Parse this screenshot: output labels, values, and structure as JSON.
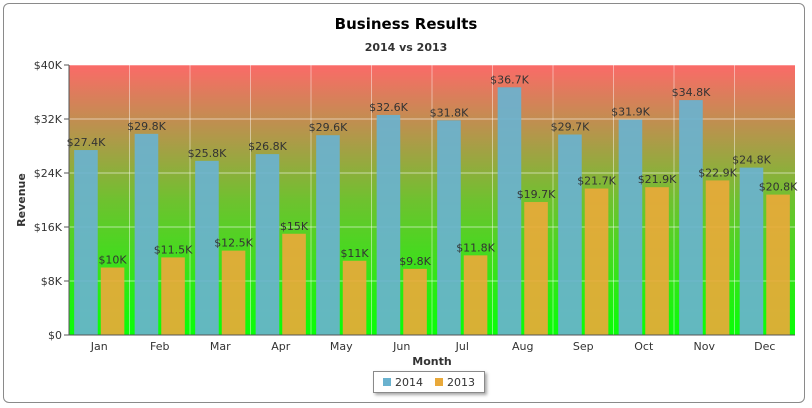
{
  "chart_data": {
    "type": "bar",
    "title": "Business Results",
    "subtitle": "2014 vs 2013",
    "xlabel": "Month",
    "ylabel": "Revenue",
    "ylim": [
      0,
      40000
    ],
    "yticks": [
      0,
      8000,
      16000,
      24000,
      32000,
      40000
    ],
    "ytick_labels": [
      "$0",
      "$8K",
      "$16K",
      "$24K",
      "$32K",
      "$40K"
    ],
    "grid": true,
    "legend_position": "bottom-center",
    "categories": [
      "Jan",
      "Feb",
      "Mar",
      "Apr",
      "May",
      "Jun",
      "Jul",
      "Aug",
      "Sep",
      "Oct",
      "Nov",
      "Dec"
    ],
    "series": [
      {
        "name": "2014",
        "color": "#6ab2cf",
        "values": [
          27400,
          29800,
          25800,
          26800,
          29600,
          32600,
          31800,
          36700,
          29700,
          31900,
          34800,
          24800
        ],
        "labels": [
          "$27.4K",
          "$29.8K",
          "$25.8K",
          "$26.8K",
          "$29.6K",
          "$32.6K",
          "$31.8K",
          "$36.7K",
          "$29.7K",
          "$31.9K",
          "$34.8K",
          "$24.8K"
        ]
      },
      {
        "name": "2013",
        "color": "#e9a93a",
        "values": [
          10000,
          11500,
          12500,
          15000,
          11000,
          9800,
          11800,
          19700,
          21700,
          21900,
          22900,
          20800
        ],
        "labels": [
          "$10K",
          "$11.5K",
          "$12.5K",
          "$15K",
          "$11K",
          "$9.8K",
          "$11.8K",
          "$19.7K",
          "$21.7K",
          "$21.9K",
          "$22.9K",
          "$20.8K"
        ]
      }
    ],
    "background_gradient": [
      "#fb6a68",
      "#6fc12f",
      "#07ff07"
    ]
  },
  "legend": {
    "series_2014": "2014",
    "series_2013": "2013"
  }
}
